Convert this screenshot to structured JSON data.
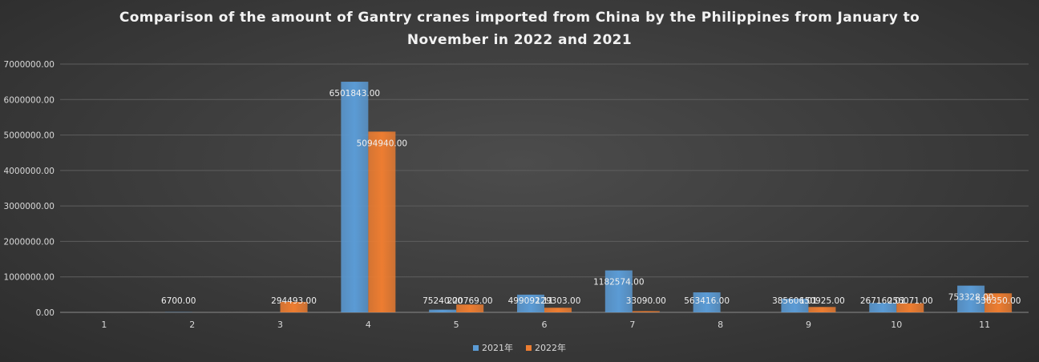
{
  "chart_data": {
    "type": "bar",
    "title": "Comparison of the amount of Gantry cranes imported from China by the Philippines from January to November in 2022 and 2021",
    "xlabel": "",
    "ylabel": "",
    "categories": [
      "1",
      "2",
      "3",
      "4",
      "5",
      "6",
      "7",
      "8",
      "9",
      "10",
      "11"
    ],
    "ylim": [
      0,
      7000000
    ],
    "yticks": [
      "0.00",
      "1000000.00",
      "2000000.00",
      "3000000.00",
      "4000000.00",
      "5000000.00",
      "6000000.00",
      "7000000.00"
    ],
    "grid": true,
    "legend_position": "bottom",
    "series": [
      {
        "name": "2021年",
        "color": "#5b9bd5",
        "values": [
          null,
          6700,
          null,
          6501843,
          75240,
          499092.11,
          1182574,
          563416,
          385606.01,
          267160.01,
          753328
        ],
        "labels": [
          "",
          "6700.00",
          "",
          "6501843.00",
          "75240.00",
          "499092.11",
          "1182574.00",
          "563416.00",
          "385606.01",
          "267160.01",
          "753328.00"
        ]
      },
      {
        "name": "2022年",
        "color": "#ed7d31",
        "values": [
          null,
          null,
          294493,
          5094940,
          220769,
          129303,
          33090,
          null,
          150925,
          256071,
          536350
        ],
        "labels": [
          "",
          "",
          "294493.00",
          "5094940.00",
          "220769.00",
          "129303.00",
          "33090.00",
          "",
          "150925.00",
          "256071.00",
          "536350.00"
        ]
      }
    ]
  }
}
